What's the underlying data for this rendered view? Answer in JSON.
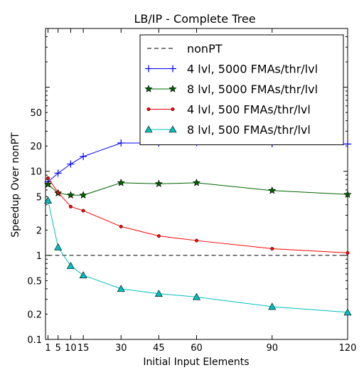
{
  "chart_data": {
    "type": "line",
    "title": "LB/IP - Complete Tree",
    "xlabel": "Initial Input Elements",
    "ylabel": "Speedup Over nonPT",
    "x_scale": "linear",
    "y_scale": "log",
    "xlim": [
      0,
      120
    ],
    "ylim": [
      0.1,
      500
    ],
    "x_ticks": [
      1,
      5,
      10,
      15,
      30,
      45,
      60,
      90,
      120
    ],
    "x_tick_labels": [
      "1",
      "5",
      "10",
      "15",
      "30",
      "45",
      "60",
      "90",
      "120"
    ],
    "y_ticks": [
      0.1,
      0.2,
      0.5,
      1,
      2,
      5,
      10,
      20,
      50
    ],
    "y_tick_labels": [
      "0.1",
      "0.2",
      "0.5",
      "1",
      "2",
      "5",
      "10",
      "20",
      "50"
    ],
    "legend_position": "top-right",
    "grid": false,
    "x": [
      1,
      5,
      10,
      15,
      30,
      45,
      60,
      90,
      120
    ],
    "series": [
      {
        "name": "nonPT",
        "color": "#000000",
        "marker": "none",
        "line_style": "dashed",
        "values": [
          1,
          1,
          1,
          1,
          1,
          1,
          1,
          1,
          1
        ]
      },
      {
        "name": "4 lvl, 5000 FMAs/thr/lvl",
        "color": "#0000ff",
        "marker": "plus",
        "line_style": "solid",
        "values": [
          7.5,
          9.5,
          12.2,
          15.0,
          21.7,
          21.7,
          22.0,
          21.3,
          21.1
        ]
      },
      {
        "name": "8 lvl, 5000 FMAs/thr/lvl",
        "color": "#006400",
        "marker": "star",
        "line_style": "solid",
        "values": [
          7.0,
          5.5,
          5.2,
          5.2,
          7.3,
          7.1,
          7.3,
          5.9,
          5.3
        ]
      },
      {
        "name": "4 lvl, 500 FMAs/thr/lvl",
        "color": "#ff0000",
        "marker": "dot",
        "line_style": "solid",
        "values": [
          8.3,
          5.6,
          3.8,
          3.4,
          2.2,
          1.7,
          1.5,
          1.2,
          1.07
        ]
      },
      {
        "name": "8 lvl, 500 FMAs/thr/lvl",
        "color": "#00bfbf",
        "marker": "triangle",
        "line_style": "solid",
        "values": [
          4.5,
          1.25,
          0.75,
          0.58,
          0.4,
          0.35,
          0.32,
          0.245,
          0.21
        ]
      }
    ]
  }
}
